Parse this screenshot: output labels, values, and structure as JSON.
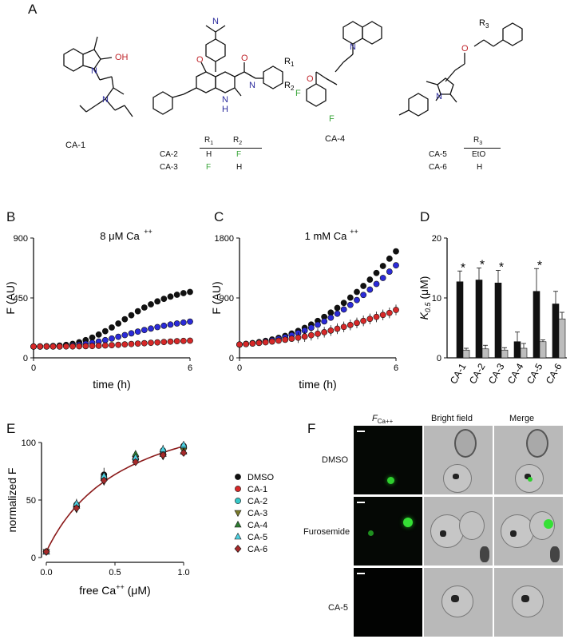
{
  "panels": {
    "A": "A",
    "B": "B",
    "C": "C",
    "D": "D",
    "E": "E",
    "F": "F"
  },
  "compounds": {
    "ca1": "CA-1",
    "ca4": "CA-4",
    "oh": "OH",
    "o": "O",
    "n": "N",
    "h": "H",
    "f": "F",
    "r1": "R",
    "r2": "R",
    "r3": "R",
    "sub1": "1",
    "sub2": "2",
    "sub3": "3",
    "table1": {
      "header_r1": "R",
      "header_r2": "R",
      "rows": [
        {
          "name": "CA-2",
          "r1": "H",
          "r2": "F"
        },
        {
          "name": "CA-3",
          "r1": "F",
          "r2": "H"
        }
      ]
    },
    "table2": {
      "header_r3": "R",
      "rows": [
        {
          "name": "CA-5",
          "r3": "EtO"
        },
        {
          "name": "CA-6",
          "r3": "H"
        }
      ]
    }
  },
  "colors": {
    "black": "#111111",
    "blue": "#2b2bd8",
    "red": "#d62828",
    "green": "#3aa53a",
    "oxygen": "#c0272d",
    "nitrogen": "#2a2a9c",
    "curve": "#8b1a1a"
  },
  "chart_data": [
    {
      "id": "B",
      "type": "scatter",
      "title": "8 μM  Ca",
      "title_sup": "++",
      "xlabel": "time (h)",
      "ylabel": "F (AU)",
      "xlim": [
        0,
        6
      ],
      "ylim": [
        0,
        900
      ],
      "xticks": [
        "0",
        "6"
      ],
      "yticks": [
        "0",
        "450",
        "900"
      ],
      "x": [
        0,
        0.25,
        0.5,
        0.75,
        1,
        1.25,
        1.5,
        1.75,
        2,
        2.25,
        2.5,
        2.75,
        3,
        3.25,
        3.5,
        3.75,
        4,
        4.25,
        4.5,
        4.75,
        5,
        5.25,
        5.5,
        5.75,
        6
      ],
      "series": [
        {
          "color": "#111111",
          "values": [
            85,
            86,
            87,
            89,
            92,
            97,
            105,
            117,
            133,
            152,
            175,
            200,
            228,
            258,
            290,
            320,
            350,
            378,
            402,
            424,
            443,
            460,
            474,
            486,
            495
          ]
        },
        {
          "color": "#2b2bd8",
          "values": [
            85,
            85,
            86,
            87,
            88,
            90,
            93,
            98,
            105,
            113,
            122,
            133,
            145,
            158,
            171,
            184,
            197,
            209,
            220,
            231,
            241,
            250,
            258,
            265,
            272
          ]
        },
        {
          "color": "#d62828",
          "values": [
            85,
            85,
            85,
            85,
            85,
            86,
            86,
            87,
            88,
            89,
            91,
            93,
            95,
            98,
            101,
            104,
            107,
            110,
            113,
            116,
            119,
            122,
            125,
            127,
            129
          ]
        }
      ]
    },
    {
      "id": "C",
      "type": "scatter",
      "title": "1 mM  Ca",
      "title_sup": "++",
      "xlabel": "time (h)",
      "ylabel": "F (AU)",
      "xlim": [
        0,
        6
      ],
      "ylim": [
        0,
        1800
      ],
      "xticks": [
        "0",
        "6"
      ],
      "yticks": [
        "0",
        "900",
        "1800"
      ],
      "x": [
        0,
        0.25,
        0.5,
        0.75,
        1,
        1.25,
        1.5,
        1.75,
        2,
        2.25,
        2.5,
        2.75,
        3,
        3.25,
        3.5,
        3.75,
        4,
        4.25,
        4.5,
        4.75,
        5,
        5.25,
        5.5,
        5.75,
        6
      ],
      "series": [
        {
          "color": "#111111",
          "values": [
            200,
            210,
            222,
            236,
            254,
            275,
            300,
            330,
            365,
            405,
            450,
            500,
            555,
            615,
            680,
            750,
            825,
            905,
            990,
            1080,
            1175,
            1275,
            1380,
            1490,
            1600
          ]
        },
        {
          "color": "#2b2bd8",
          "values": [
            200,
            208,
            218,
            230,
            245,
            263,
            285,
            310,
            340,
            373,
            410,
            452,
            498,
            548,
            603,
            663,
            727,
            795,
            868,
            945,
            1025,
            1110,
            1200,
            1295,
            1390
          ]
        },
        {
          "color": "#d62828",
          "errorbar": 80,
          "values": [
            200,
            207,
            215,
            224,
            234,
            245,
            258,
            272,
            287,
            303,
            320,
            340,
            362,
            385,
            410,
            437,
            465,
            494,
            524,
            555,
            585,
            615,
            645,
            675,
            720
          ]
        }
      ]
    },
    {
      "id": "D",
      "type": "bar",
      "ylabel": "K",
      "ylabel_sub": "0.5",
      "ylabel_unit": "(μM)",
      "ylim": [
        0,
        20
      ],
      "yticks": [
        "0",
        "10",
        "20"
      ],
      "categories": [
        "CA-1",
        "CA-2",
        "CA-3",
        "CA-4",
        "CA-5",
        "CA-6"
      ],
      "significance": [
        "*",
        "*",
        "*",
        "",
        "*",
        ""
      ],
      "series": [
        {
          "color": "#111111",
          "values": [
            12.7,
            13.0,
            12.5,
            2.7,
            11.1,
            9.0
          ],
          "errors": [
            1.8,
            2.0,
            2.1,
            1.6,
            3.8,
            2.1
          ]
        },
        {
          "color": "#bdbdbd",
          "values": [
            1.3,
            1.5,
            1.3,
            1.6,
            2.7,
            6.5
          ],
          "errors": [
            0.3,
            0.6,
            0.4,
            0.8,
            0.3,
            1.1
          ]
        }
      ]
    },
    {
      "id": "E",
      "type": "scatter",
      "xlabel": "free Ca",
      "xlabel_sup": "++",
      "xlabel_unit": "(μM)",
      "ylabel": "normalized F",
      "xlim": [
        0,
        1.0
      ],
      "ylim": [
        0,
        100
      ],
      "xticks": [
        "0.0",
        "0.5",
        "1.0"
      ],
      "yticks": [
        "0",
        "50",
        "100"
      ],
      "x": [
        0.0,
        0.22,
        0.42,
        0.65,
        0.85,
        1.0
      ],
      "fit": {
        "vmax": 150,
        "k": 0.58,
        "color": "#8b1a1a"
      },
      "legend": [
        {
          "label": "DMSO",
          "color": "#111111",
          "marker": "circle"
        },
        {
          "label": "CA-1",
          "color": "#d62828",
          "marker": "circle"
        },
        {
          "label": "CA-2",
          "color": "#35c7c7",
          "marker": "circle"
        },
        {
          "label": "CA-3",
          "color": "#7a7a2a",
          "marker": "triangle-down"
        },
        {
          "label": "CA-4",
          "color": "#2e7d32",
          "marker": "triangle-up"
        },
        {
          "label": "CA-5",
          "color": "#4dd0e1",
          "marker": "triangle-up"
        },
        {
          "label": "CA-6",
          "color": "#a52a2a",
          "marker": "diamond"
        }
      ],
      "series": [
        {
          "name": "DMSO",
          "values": [
            5,
            45,
            72,
            86,
            92,
            95
          ]
        },
        {
          "name": "CA-1",
          "values": [
            5,
            44,
            68,
            88,
            91,
            97
          ]
        },
        {
          "name": "CA-2",
          "values": [
            5,
            46,
            70,
            85,
            93,
            96
          ]
        },
        {
          "name": "CA-3",
          "values": [
            5,
            42,
            66,
            84,
            88,
            93
          ]
        },
        {
          "name": "CA-4",
          "values": [
            5,
            45,
            69,
            90,
            90,
            92
          ]
        },
        {
          "name": "CA-5",
          "values": [
            5,
            47,
            71,
            87,
            94,
            98
          ]
        },
        {
          "name": "CA-6",
          "values": [
            5,
            43,
            67,
            83,
            89,
            91
          ]
        }
      ]
    }
  ],
  "microscopy": {
    "col_fca": "F",
    "col_fca_sub": "Ca++",
    "col_bright": "Bright field",
    "col_merge": "Merge",
    "rows": [
      "DMSO",
      "Furosemide",
      "CA-5"
    ]
  }
}
